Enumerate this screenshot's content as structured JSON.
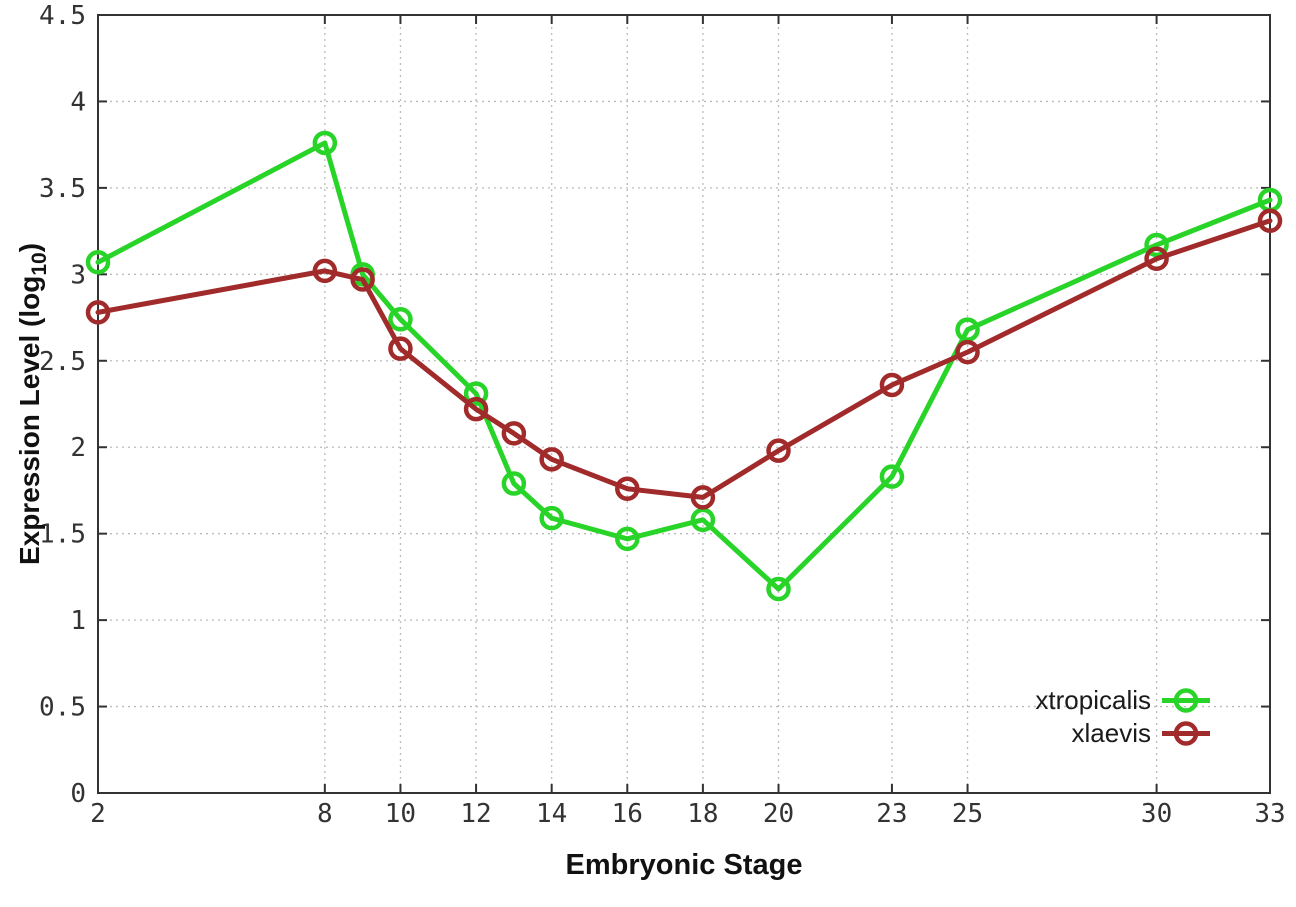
{
  "chart_data": {
    "type": "line",
    "title": "",
    "xlabel": "Embryonic Stage",
    "ylabel": "Expression Level (log10)",
    "ylabel_main": "Expression Level (log",
    "ylabel_sub": "10",
    "ylabel_close": ")",
    "x": [
      2,
      8,
      9,
      10,
      12,
      13,
      14,
      16,
      18,
      20,
      23,
      25,
      30,
      33
    ],
    "series": [
      {
        "name": "xtropicalis",
        "color": "#28d428",
        "values": [
          3.07,
          3.76,
          3.0,
          2.74,
          2.31,
          1.79,
          1.59,
          1.47,
          1.58,
          1.18,
          1.83,
          2.68,
          3.17,
          3.43
        ]
      },
      {
        "name": "xlaevis",
        "color": "#a12a2a",
        "values": [
          2.78,
          3.02,
          2.97,
          2.57,
          2.22,
          2.08,
          1.93,
          1.76,
          1.71,
          1.98,
          2.36,
          2.55,
          3.09,
          3.31
        ]
      }
    ],
    "xlim": [
      2,
      33
    ],
    "ylim": [
      0,
      4.5
    ],
    "x_ticks": [
      2,
      8,
      10,
      12,
      14,
      16,
      18,
      20,
      23,
      25,
      30,
      33
    ],
    "x_tick_labels": [
      "2",
      "8",
      "10",
      "12",
      "14",
      "16",
      "18",
      "20",
      "23",
      "25",
      "30",
      "33"
    ],
    "y_ticks": [
      0,
      0.5,
      1,
      1.5,
      2,
      2.5,
      3,
      3.5,
      4,
      4.5
    ],
    "y_tick_labels": [
      "0",
      "0.5",
      "1",
      "1.5",
      "2",
      "2.5",
      "3",
      "3.5",
      "4",
      "4.5"
    ],
    "grid": true,
    "grid_color": "#bbbbbb",
    "frame_color": "#333333",
    "legend_position": "bottom-right",
    "legend": [
      "xtropicalis",
      "xlaevis"
    ]
  }
}
